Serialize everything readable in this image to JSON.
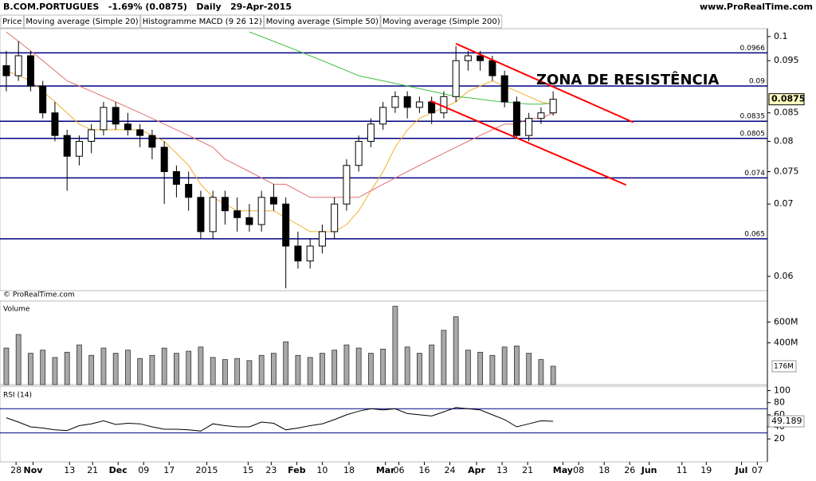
{
  "header": {
    "title": "B.COM.PORTUGUES   -1.69% (0.0875)   Daily   29-Apr-2015",
    "site": "www.ProRealTime.com",
    "watermark": "© ProRealTime.com"
  },
  "chart_data": [
    {
      "type": "candlestick",
      "open": [
        0.094,
        0.092,
        0.096,
        0.09,
        0.085,
        0.081,
        0.0775,
        0.08,
        0.082,
        0.086,
        0.083,
        0.082,
        0.081,
        0.079,
        0.075,
        0.073,
        0.071,
        0.066,
        0.071,
        0.069,
        0.068,
        0.067,
        0.071,
        0.07,
        0.064,
        0.062,
        0.064,
        0.066,
        0.07,
        0.076,
        0.08,
        0.083,
        0.086,
        0.088,
        0.086,
        0.087,
        0.085,
        0.088,
        0.095,
        0.096,
        0.095,
        0.092,
        0.087,
        0.081,
        0.084,
        0.085
      ],
      "high": [
        0.097,
        0.099,
        0.097,
        0.091,
        0.087,
        0.082,
        0.081,
        0.083,
        0.087,
        0.087,
        0.085,
        0.083,
        0.082,
        0.08,
        0.076,
        0.075,
        0.072,
        0.072,
        0.072,
        0.071,
        0.07,
        0.072,
        0.073,
        0.071,
        0.066,
        0.065,
        0.067,
        0.071,
        0.077,
        0.081,
        0.084,
        0.087,
        0.089,
        0.089,
        0.088,
        0.088,
        0.089,
        0.098,
        0.097,
        0.097,
        0.096,
        0.093,
        0.088,
        0.085,
        0.086,
        0.089
      ],
      "low": [
        0.089,
        0.091,
        0.089,
        0.084,
        0.08,
        0.072,
        0.076,
        0.078,
        0.081,
        0.082,
        0.081,
        0.079,
        0.077,
        0.07,
        0.071,
        0.069,
        0.065,
        0.065,
        0.067,
        0.066,
        0.066,
        0.066,
        0.069,
        0.0585,
        0.061,
        0.061,
        0.063,
        0.065,
        0.069,
        0.075,
        0.079,
        0.082,
        0.085,
        0.084,
        0.085,
        0.083,
        0.084,
        0.087,
        0.093,
        0.093,
        0.091,
        0.086,
        0.0805,
        0.08,
        0.083,
        0.0845
      ],
      "close": [
        0.092,
        0.096,
        0.09,
        0.085,
        0.081,
        0.0775,
        0.08,
        0.082,
        0.086,
        0.083,
        0.082,
        0.081,
        0.079,
        0.075,
        0.073,
        0.071,
        0.066,
        0.071,
        0.069,
        0.068,
        0.067,
        0.071,
        0.07,
        0.064,
        0.062,
        0.064,
        0.066,
        0.07,
        0.076,
        0.08,
        0.083,
        0.086,
        0.088,
        0.086,
        0.087,
        0.085,
        0.088,
        0.095,
        0.096,
        0.095,
        0.092,
        0.087,
        0.081,
        0.084,
        0.085,
        0.0875
      ],
      "up_color": "#ffffff",
      "down_color": "#000000",
      "series": [
        {
          "name": "Price",
          "color": "#000000"
        },
        {
          "name": "Moving average (Simple 20)",
          "color": "#f0b030",
          "values": [
            0.093,
            0.092,
            0.091,
            0.089,
            0.087,
            0.085,
            0.083,
            0.082,
            0.082,
            0.082,
            0.082,
            0.082,
            0.081,
            0.08,
            0.078,
            0.076,
            0.073,
            0.071,
            0.07,
            0.069,
            0.069,
            0.069,
            0.069,
            0.068,
            0.067,
            0.066,
            0.066,
            0.066,
            0.067,
            0.069,
            0.072,
            0.075,
            0.079,
            0.082,
            0.084,
            0.085,
            0.086,
            0.087,
            0.089,
            0.09,
            0.091,
            0.09,
            0.089,
            0.088,
            0.087,
            0.0865
          ]
        },
        {
          "name": "Histogramme MACD (9 26 12)",
          "color": "#000000"
        },
        {
          "name": "Moving average (Simple 50)",
          "color": "#e07070",
          "values": [
            0.101,
            0.099,
            0.097,
            0.095,
            0.093,
            0.091,
            0.09,
            0.089,
            0.088,
            0.087,
            0.086,
            0.085,
            0.084,
            0.083,
            0.082,
            0.081,
            0.08,
            0.079,
            0.077,
            0.076,
            0.075,
            0.074,
            0.073,
            0.073,
            0.072,
            0.071,
            0.071,
            0.071,
            0.071,
            0.071,
            0.072,
            0.073,
            0.074,
            0.075,
            0.076,
            0.077,
            0.078,
            0.079,
            0.08,
            0.081,
            0.082,
            0.083,
            0.083,
            0.084,
            0.084,
            0.085
          ]
        },
        {
          "name": "Moving average (Simple 200)",
          "color": "#40c040",
          "values": [
            null,
            null,
            null,
            null,
            null,
            null,
            null,
            null,
            null,
            null,
            null,
            null,
            null,
            null,
            null,
            null,
            null,
            null,
            null,
            null,
            0.101,
            0.1,
            0.099,
            0.098,
            0.097,
            0.096,
            0.095,
            0.094,
            0.093,
            0.092,
            0.0915,
            0.091,
            0.0905,
            0.09,
            0.0895,
            0.089,
            0.0885,
            0.088,
            0.0878,
            0.0875,
            0.0872,
            0.087,
            0.0868,
            0.0866,
            0.0866,
            0.0868
          ]
        }
      ],
      "xlim": [
        -0.52,
        62.63
      ],
      "ylim": [
        0.0582,
        0.1017
      ],
      "log_scale": true,
      "yticks": [
        0.1,
        0.095,
        0.085,
        0.08,
        0.075,
        0.07,
        0.06
      ],
      "levels": [
        0.0966,
        0.09,
        0.0835,
        0.0805,
        0.074,
        0.065
      ],
      "level_color": "#000080",
      "trendlines": [
        {
          "x": [
            37,
            51.6
          ],
          "y": [
            0.0985,
            0.0833
          ]
        },
        {
          "x": [
            34.9,
            51
          ],
          "y": [
            0.0872,
            0.0729
          ]
        }
      ],
      "trendline_color": "#ff0000",
      "annotation": "ZONA DE RESISTÊNCIA",
      "annotation_color": "#2020ff"
    },
    {
      "type": "bar",
      "title": "Volume",
      "color": "#a8a8a8",
      "values": [
        350000000,
        480000000,
        300000000,
        330000000,
        260000000,
        310000000,
        380000000,
        280000000,
        350000000,
        300000000,
        330000000,
        250000000,
        280000000,
        350000000,
        300000000,
        320000000,
        360000000,
        260000000,
        240000000,
        250000000,
        230000000,
        280000000,
        300000000,
        410000000,
        280000000,
        260000000,
        300000000,
        330000000,
        380000000,
        350000000,
        300000000,
        340000000,
        750000000,
        360000000,
        300000000,
        380000000,
        520000000,
        650000000,
        330000000,
        310000000,
        280000000,
        360000000,
        370000000,
        300000000,
        240000000,
        176000000
      ],
      "ylim": [
        0,
        785000000
      ],
      "yticks": [
        {
          "value": 600000000,
          "label": "600M"
        },
        {
          "value": 400000000,
          "label": "400M"
        }
      ],
      "last_label": "176M"
    },
    {
      "type": "line",
      "title": "RSI (14)",
      "color": "#000000",
      "values": [
        55,
        48,
        40,
        38,
        35,
        34,
        42,
        45,
        50,
        44,
        46,
        45,
        40,
        36,
        36,
        35,
        33,
        45,
        42,
        40,
        40,
        48,
        46,
        35,
        38,
        42,
        45,
        52,
        60,
        66,
        70,
        68,
        70,
        62,
        60,
        58,
        65,
        72,
        70,
        68,
        60,
        52,
        40,
        45,
        50,
        49.189
      ],
      "ylim": [
        -18,
        102
      ],
      "yticks": [
        100,
        80,
        60,
        40,
        20
      ],
      "levels": [
        70,
        30
      ],
      "level_color": "#000080",
      "xticks": [
        {
          "value": 0.8,
          "label": "28"
        },
        {
          "value": 2.2,
          "label": "Nov"
        },
        {
          "value": 5.2,
          "label": "13"
        },
        {
          "value": 7.1,
          "label": "21"
        },
        {
          "value": 9.2,
          "label": "Dec"
        },
        {
          "value": 11.3,
          "label": "09"
        },
        {
          "value": 13.4,
          "label": "17"
        },
        {
          "value": 16.5,
          "label": "2015"
        },
        {
          "value": 19.9,
          "label": "15"
        },
        {
          "value": 21.8,
          "label": "23"
        },
        {
          "value": 23.9,
          "label": "Feb"
        },
        {
          "value": 26,
          "label": "10"
        },
        {
          "value": 28.2,
          "label": "18"
        },
        {
          "value": 31.2,
          "label": "Mar"
        },
        {
          "value": 32.3,
          "label": "06"
        },
        {
          "value": 34.4,
          "label": "16"
        },
        {
          "value": 36.5,
          "label": "24"
        },
        {
          "value": 38.7,
          "label": "Apr"
        },
        {
          "value": 40.8,
          "label": "13"
        },
        {
          "value": 42.9,
          "label": "21"
        },
        {
          "value": 45.8,
          "label": "May"
        },
        {
          "value": 47.1,
          "label": "08"
        },
        {
          "value": 49.2,
          "label": "18"
        },
        {
          "value": 51.3,
          "label": "26"
        },
        {
          "value": 52.9,
          "label": "Jun"
        },
        {
          "value": 55.6,
          "label": "11"
        },
        {
          "value": 57.6,
          "label": "19"
        },
        {
          "value": 60.5,
          "label": "Jul"
        },
        {
          "value": 61.8,
          "label": "07"
        }
      ]
    }
  ]
}
